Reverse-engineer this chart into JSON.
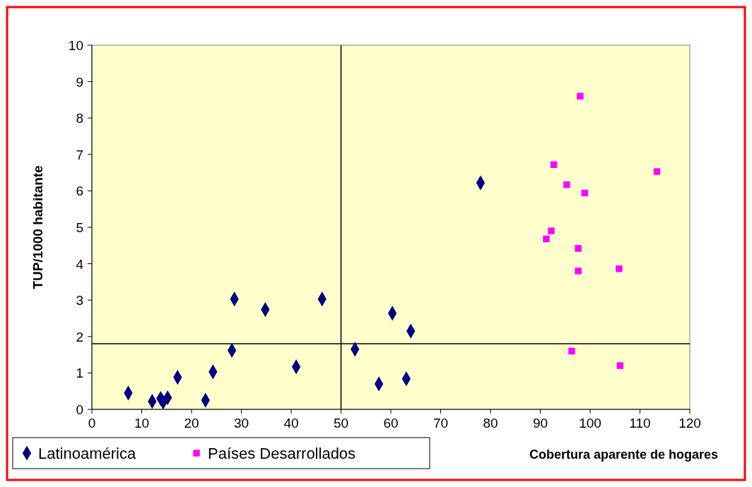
{
  "chart_data": {
    "type": "scatter",
    "xlabel": "Cobertura aparente de hogares",
    "ylabel": "TUP/1000 habitante",
    "xlim": [
      0,
      120
    ],
    "xticks": [
      0,
      10,
      20,
      30,
      40,
      50,
      60,
      70,
      80,
      90,
      100,
      110,
      120
    ],
    "ylim": [
      0,
      10
    ],
    "yticks": [
      0,
      1,
      2,
      3,
      4,
      5,
      6,
      7,
      8,
      9,
      10
    ],
    "grid": false,
    "legend": "bottom left",
    "series": [
      {
        "name": "Latinoamérica",
        "color": "#000080",
        "marker": "diamond",
        "x": [
          7.3,
          12.1,
          13.8,
          14.3,
          15.2,
          17.2,
          22.8,
          24.3,
          28.1,
          28.6,
          34.8,
          41.0,
          46.2,
          52.8,
          57.6,
          60.3,
          63.1,
          64.0,
          78.0
        ],
        "values": [
          0.45,
          0.22,
          0.3,
          0.2,
          0.32,
          0.88,
          0.25,
          1.03,
          1.62,
          3.03,
          2.74,
          1.17,
          3.03,
          1.65,
          0.7,
          2.64,
          0.84,
          2.15,
          6.22
        ]
      },
      {
        "name": "Países Desarrollados",
        "color": "#ff00ff",
        "marker": "square",
        "x": [
          98.0,
          92.7,
          95.3,
          113.4,
          98.9,
          92.2,
          91.2,
          97.6,
          97.6,
          105.8,
          96.3,
          106.0
        ],
        "values": [
          8.6,
          6.72,
          6.17,
          6.53,
          5.94,
          4.9,
          4.68,
          4.42,
          3.8,
          3.86,
          1.6,
          1.2
        ]
      }
    ],
    "ref_lines": [
      {
        "axis": "y",
        "value": 1.8,
        "color": "#000000"
      },
      {
        "axis": "x",
        "value": 50,
        "color": "#000000"
      }
    ]
  }
}
